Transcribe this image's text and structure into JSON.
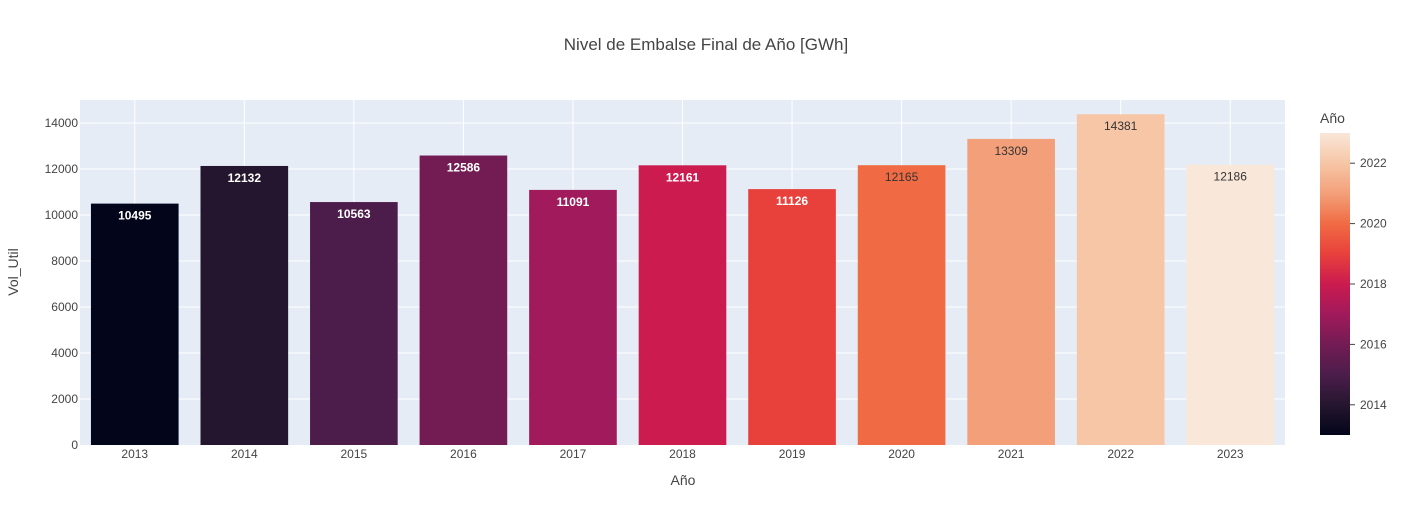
{
  "chart_data": {
    "type": "bar",
    "title": "Nivel de Embalse Final de Año [GWh]",
    "xlabel": "Año",
    "ylabel": "Vol_Util",
    "categories": [
      "2013",
      "2014",
      "2015",
      "2016",
      "2017",
      "2018",
      "2019",
      "2020",
      "2021",
      "2022",
      "2023"
    ],
    "values": [
      10495,
      12132,
      10563,
      12586,
      11091,
      12161,
      11126,
      12165,
      13309,
      14381,
      12186
    ],
    "data_labels": [
      "10495",
      "12132",
      "10563",
      "12586",
      "11091",
      "12161",
      "11126",
      "12165",
      "13309",
      "14381",
      "12186"
    ],
    "bar_colors": [
      "#03051a",
      "#25162f",
      "#4c1d4b",
      "#731c53",
      "#a11a5b",
      "#cb1b4f",
      "#e8413c",
      "#f06b43",
      "#f3a07a",
      "#f6c6a6",
      "#f9e7d9"
    ],
    "label_colors": [
      "#ffffff",
      "#ffffff",
      "#ffffff",
      "#ffffff",
      "#ffffff",
      "#ffffff",
      "#ffffff",
      "#333333",
      "#333333",
      "#333333",
      "#333333"
    ],
    "ylim": [
      0,
      15000
    ],
    "yticks": [
      0,
      2000,
      4000,
      6000,
      8000,
      10000,
      12000,
      14000
    ],
    "ytick_labels": [
      "0",
      "2000",
      "4000",
      "6000",
      "8000",
      "10000",
      "12000",
      "14000"
    ],
    "grid": true,
    "plot_background": "#e5ecf6",
    "legend": "none",
    "colorbar": {
      "title": "Año",
      "range": [
        2013,
        2023
      ],
      "ticks": [
        2014,
        2016,
        2018,
        2020,
        2022
      ],
      "tick_labels": [
        "2014",
        "2016",
        "2018",
        "2020",
        "2022"
      ],
      "colorscale": [
        "#03051a",
        "#25162f",
        "#4c1d4b",
        "#731c53",
        "#a11a5b",
        "#cb1b4f",
        "#e8413c",
        "#f06b43",
        "#f3a07a",
        "#f6c6a6",
        "#f9e7d9"
      ]
    }
  }
}
